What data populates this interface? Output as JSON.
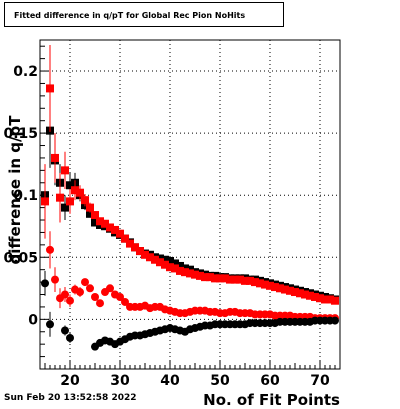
{
  "title": "Fitted difference in q/pT for Global Rec Pion NoHits",
  "timestamp": "Sun Feb 20 13:52:58 2022",
  "chart_data": {
    "type": "scatter",
    "xlabel": "No. of Fit Points",
    "ylabel": "difference in q/pT",
    "xlim": [
      14,
      74
    ],
    "ylim": [
      -0.04,
      0.225
    ],
    "xticks": [
      20,
      30,
      40,
      50,
      60,
      70
    ],
    "xtick_labels": [
      "20",
      "30",
      "40",
      "50",
      "60",
      "70"
    ],
    "yticks": [
      0,
      0.05,
      0.1,
      0.15,
      0.2
    ],
    "ytick_labels": [
      "0",
      "0.05",
      "0.1",
      "0.15",
      "0.2"
    ],
    "grid": true,
    "series": [
      {
        "color": "#000000",
        "marker": "square",
        "x": [
          15,
          16,
          17,
          18,
          19,
          20,
          21,
          22,
          23,
          24,
          25,
          26,
          27,
          28,
          29,
          30,
          31,
          32,
          33,
          34,
          35,
          36,
          37,
          38,
          39,
          40,
          41,
          42,
          43,
          44,
          45,
          46,
          47,
          48,
          49,
          50,
          51,
          52,
          53,
          54,
          55,
          56,
          57,
          58,
          59,
          60,
          61,
          62,
          63,
          64,
          65,
          66,
          67,
          68,
          69,
          70,
          71,
          72,
          73
        ],
        "y": [
          0.1,
          0.152,
          0.128,
          0.11,
          0.09,
          0.108,
          0.11,
          0.1,
          0.092,
          0.085,
          0.078,
          0.076,
          0.075,
          0.073,
          0.07,
          0.068,
          0.065,
          0.062,
          0.058,
          0.055,
          0.053,
          0.052,
          0.05,
          0.049,
          0.048,
          0.047,
          0.045,
          0.043,
          0.041,
          0.04,
          0.038,
          0.037,
          0.036,
          0.035,
          0.035,
          0.034,
          0.034,
          0.033,
          0.033,
          0.033,
          0.033,
          0.032,
          0.032,
          0.031,
          0.03,
          0.029,
          0.028,
          0.027,
          0.026,
          0.025,
          0.024,
          0.023,
          0.022,
          0.021,
          0.02,
          0.019,
          0.018,
          0.017,
          0.016
        ],
        "err": [
          0.02,
          0.03,
          0.02,
          0.015,
          0.01,
          0.01,
          0.008,
          0.005,
          0.004,
          0.003,
          0.003,
          0.002,
          0.002,
          0.002,
          0.002,
          0.002,
          0.002,
          0.002,
          0.002,
          0.002,
          0.002,
          0.002,
          0.002,
          0.002,
          0.002,
          0.002,
          0.002,
          0.002,
          0.002,
          0.002,
          0.002,
          0.002,
          0.002,
          0.002,
          0.002,
          0.002,
          0.002,
          0.002,
          0.002,
          0.002,
          0.002,
          0.002,
          0.002,
          0.002,
          0.002,
          0.002,
          0.002,
          0.002,
          0.002,
          0.002,
          0.002,
          0.002,
          0.002,
          0.002,
          0.002,
          0.002,
          0.002,
          0.002,
          0.002
        ]
      },
      {
        "color": "#ff0000",
        "marker": "square",
        "x": [
          15,
          16,
          17,
          18,
          19,
          20,
          21,
          22,
          23,
          24,
          25,
          26,
          27,
          28,
          29,
          30,
          31,
          32,
          33,
          34,
          35,
          36,
          37,
          38,
          39,
          40,
          41,
          42,
          43,
          44,
          45,
          46,
          47,
          48,
          49,
          50,
          51,
          52,
          53,
          54,
          55,
          56,
          57,
          58,
          59,
          60,
          61,
          62,
          63,
          64,
          65,
          66,
          67,
          68,
          69,
          70,
          71,
          72,
          73
        ],
        "y": [
          0.095,
          0.186,
          0.13,
          0.098,
          0.12,
          0.095,
          0.104,
          0.102,
          0.096,
          0.09,
          0.084,
          0.079,
          0.077,
          0.074,
          0.072,
          0.069,
          0.065,
          0.061,
          0.058,
          0.055,
          0.052,
          0.05,
          0.048,
          0.046,
          0.044,
          0.042,
          0.041,
          0.039,
          0.038,
          0.037,
          0.036,
          0.035,
          0.034,
          0.034,
          0.033,
          0.033,
          0.033,
          0.032,
          0.032,
          0.032,
          0.031,
          0.031,
          0.03,
          0.029,
          0.028,
          0.027,
          0.026,
          0.025,
          0.024,
          0.023,
          0.022,
          0.021,
          0.02,
          0.019,
          0.018,
          0.017,
          0.016,
          0.016,
          0.015
        ],
        "err": [
          0.03,
          0.035,
          0.02,
          0.02,
          0.015,
          0.01,
          0.008,
          0.006,
          0.005,
          0.004,
          0.003,
          0.003,
          0.002,
          0.002,
          0.002,
          0.002,
          0.002,
          0.002,
          0.002,
          0.002,
          0.002,
          0.002,
          0.002,
          0.002,
          0.002,
          0.002,
          0.002,
          0.002,
          0.002,
          0.002,
          0.002,
          0.002,
          0.002,
          0.002,
          0.002,
          0.002,
          0.002,
          0.002,
          0.002,
          0.002,
          0.002,
          0.002,
          0.002,
          0.002,
          0.002,
          0.002,
          0.002,
          0.002,
          0.002,
          0.002,
          0.002,
          0.002,
          0.002,
          0.002,
          0.002,
          0.002,
          0.002,
          0.002,
          0.002
        ]
      },
      {
        "color": "#ff0000",
        "marker": "circle",
        "x": [
          16,
          17,
          18,
          19,
          20,
          21,
          22,
          23,
          24,
          25,
          26,
          27,
          28,
          29,
          30,
          31,
          32,
          33,
          34,
          35,
          36,
          37,
          38,
          39,
          40,
          41,
          42,
          43,
          44,
          45,
          46,
          47,
          48,
          49,
          50,
          51,
          52,
          53,
          54,
          55,
          56,
          57,
          58,
          59,
          60,
          61,
          62,
          63,
          64,
          65,
          66,
          67,
          68,
          69,
          70,
          71,
          72,
          73
        ],
        "y": [
          0.056,
          0.032,
          0.017,
          0.02,
          0.015,
          0.024,
          0.022,
          0.03,
          0.025,
          0.018,
          0.013,
          0.022,
          0.025,
          0.02,
          0.018,
          0.014,
          0.01,
          0.01,
          0.01,
          0.011,
          0.009,
          0.01,
          0.01,
          0.008,
          0.007,
          0.006,
          0.005,
          0.005,
          0.006,
          0.007,
          0.007,
          0.007,
          0.006,
          0.006,
          0.005,
          0.005,
          0.006,
          0.006,
          0.005,
          0.005,
          0.005,
          0.004,
          0.004,
          0.004,
          0.004,
          0.003,
          0.003,
          0.003,
          0.003,
          0.002,
          0.002,
          0.002,
          0.002,
          0.001,
          0.001,
          0.001,
          0.001,
          0.001
        ],
        "err": [
          0.015,
          0.01,
          0.008,
          0.006,
          0.005,
          0.004,
          0.004,
          0.003,
          0.003,
          0.003,
          0.002,
          0.002,
          0.002,
          0.002,
          0.002,
          0.002,
          0.002,
          0.002,
          0.002,
          0.002,
          0.002,
          0.002,
          0.002,
          0.002,
          0.002,
          0.002,
          0.002,
          0.002,
          0.002,
          0.002,
          0.002,
          0.002,
          0.002,
          0.002,
          0.002,
          0.002,
          0.002,
          0.002,
          0.002,
          0.002,
          0.002,
          0.002,
          0.002,
          0.002,
          0.002,
          0.002,
          0.002,
          0.002,
          0.002,
          0.002,
          0.002,
          0.002,
          0.002,
          0.002,
          0.002,
          0.002,
          0.002,
          0.002
        ]
      },
      {
        "color": "#000000",
        "marker": "circle",
        "x": [
          15,
          16,
          19,
          20,
          25,
          26,
          27,
          28,
          29,
          30,
          31,
          32,
          33,
          34,
          35,
          36,
          37,
          38,
          39,
          40,
          41,
          42,
          43,
          44,
          45,
          46,
          47,
          48,
          49,
          50,
          51,
          52,
          53,
          54,
          55,
          56,
          57,
          58,
          59,
          60,
          61,
          62,
          63,
          64,
          65,
          66,
          67,
          68,
          69,
          70,
          71,
          72,
          73
        ],
        "y": [
          0.029,
          -0.004,
          -0.009,
          -0.015,
          -0.022,
          -0.019,
          -0.017,
          -0.018,
          -0.02,
          -0.018,
          -0.016,
          -0.014,
          -0.013,
          -0.013,
          -0.012,
          -0.011,
          -0.01,
          -0.009,
          -0.008,
          -0.007,
          -0.008,
          -0.009,
          -0.01,
          -0.008,
          -0.007,
          -0.006,
          -0.005,
          -0.005,
          -0.004,
          -0.004,
          -0.004,
          -0.004,
          -0.004,
          -0.004,
          -0.004,
          -0.003,
          -0.003,
          -0.003,
          -0.003,
          -0.003,
          -0.003,
          -0.002,
          -0.002,
          -0.002,
          -0.002,
          -0.002,
          -0.002,
          -0.002,
          -0.001,
          -0.001,
          -0.001,
          -0.001,
          -0.001
        ],
        "err": [
          0.01,
          0.01,
          0.004,
          0.004,
          0.003,
          0.003,
          0.002,
          0.002,
          0.002,
          0.002,
          0.002,
          0.002,
          0.002,
          0.002,
          0.002,
          0.002,
          0.002,
          0.002,
          0.002,
          0.002,
          0.002,
          0.002,
          0.002,
          0.002,
          0.002,
          0.002,
          0.002,
          0.002,
          0.002,
          0.002,
          0.002,
          0.002,
          0.002,
          0.002,
          0.002,
          0.002,
          0.002,
          0.002,
          0.002,
          0.002,
          0.002,
          0.002,
          0.002,
          0.002,
          0.002,
          0.002,
          0.002,
          0.002,
          0.002,
          0.002,
          0.002,
          0.002,
          0.002
        ]
      }
    ]
  }
}
